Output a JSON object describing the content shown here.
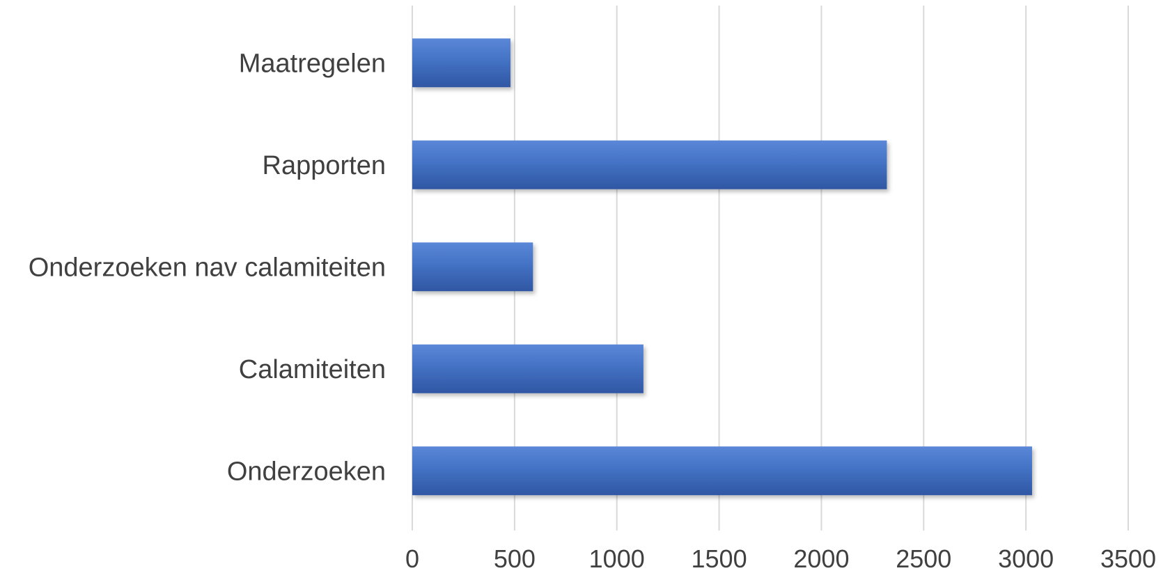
{
  "chart_data": {
    "type": "bar",
    "orientation": "horizontal",
    "categories": [
      "Maatregelen",
      "Rapporten",
      "Onderzoeken nav calamiteiten",
      "Calamiteiten",
      "Onderzoeken"
    ],
    "values": [
      480,
      2320,
      590,
      1130,
      3030
    ],
    "x_ticks": [
      "0",
      "500",
      "1000",
      "1500",
      "2000",
      "2500",
      "3000",
      "3500"
    ],
    "xlim": [
      0,
      3500
    ],
    "grid": true,
    "legend": "none",
    "bar_color": "#4472C4",
    "bar_color_light": "#5b87d8",
    "bar_color_dark": "#2f57a3"
  }
}
